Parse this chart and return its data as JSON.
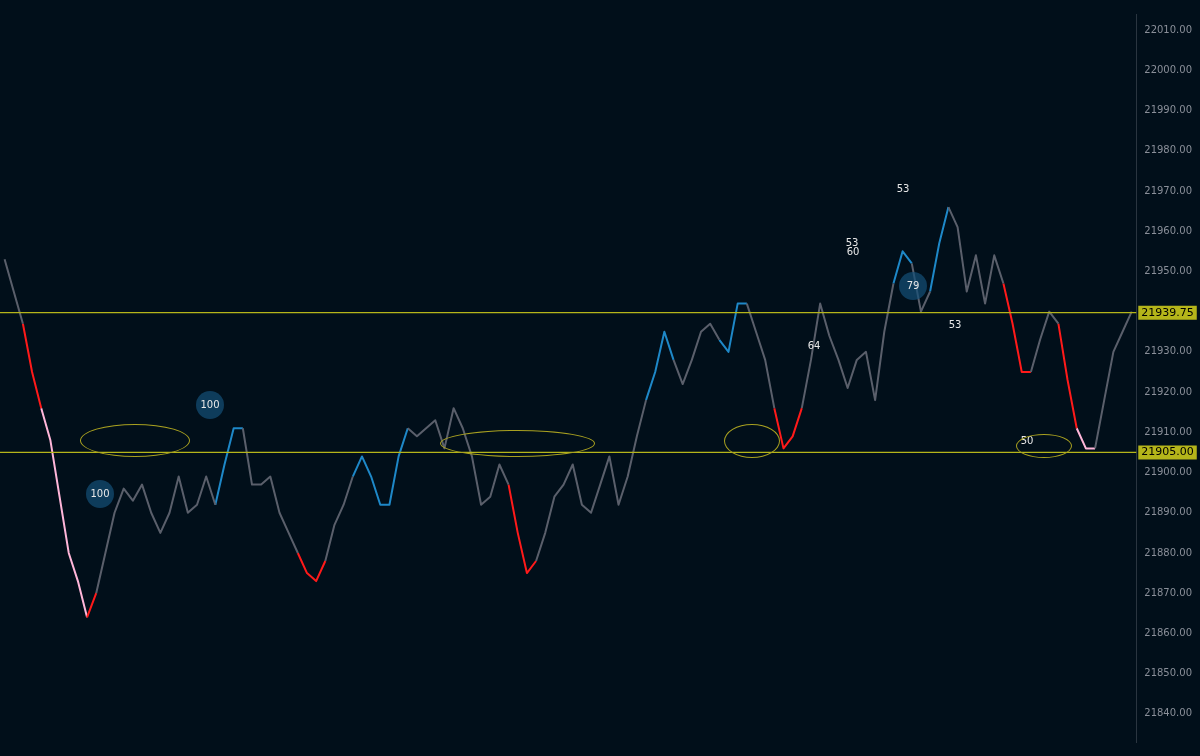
{
  "chart_data": {
    "type": "line",
    "categories": [
      null,
      null,
      null,
      null,
      null,
      null,
      null,
      null,
      null,
      null,
      null,
      null,
      null,
      null,
      null,
      null,
      null,
      null,
      null,
      null,
      null,
      null,
      null,
      null,
      null,
      null,
      null,
      null,
      null,
      null,
      null,
      null,
      null,
      null,
      null,
      null,
      null,
      null,
      null,
      null,
      null,
      null,
      null,
      null,
      null,
      null,
      null,
      null,
      null,
      null,
      null,
      null,
      null,
      null,
      null,
      null,
      null,
      null,
      null,
      null,
      null,
      null,
      null,
      null,
      null,
      null,
      null,
      null,
      null,
      null,
      null,
      null,
      null,
      null,
      null,
      null,
      null,
      null,
      null,
      null,
      null,
      null,
      null,
      null,
      null,
      null,
      null,
      null,
      null,
      null,
      null,
      null,
      null,
      null,
      null,
      null,
      null,
      null,
      null,
      null,
      null,
      null,
      null,
      null,
      null,
      null,
      null,
      null,
      null,
      null,
      null,
      null,
      null,
      null,
      null,
      null,
      null,
      null,
      null,
      null,
      null,
      null,
      null,
      null
    ],
    "series": [
      {
        "color": "#5a5f6b",
        "values": [
          21953,
          21945,
          21937,
          null,
          null,
          null,
          null,
          null,
          null,
          null,
          21870,
          21880,
          21890,
          21896,
          21893,
          21897,
          21890,
          21885,
          21890,
          21899,
          21890,
          21892,
          21899,
          21892,
          null,
          null,
          21911,
          21897,
          21897,
          21899,
          21890,
          21885,
          21880,
          null,
          null,
          21878,
          21887,
          21892,
          21899,
          null,
          null,
          null,
          null,
          null,
          21911,
          21909,
          21911,
          21913,
          21906,
          21916,
          21911,
          21904,
          21892,
          21894,
          21902,
          21897,
          null,
          null,
          21878,
          21885,
          21894,
          21897,
          21902,
          21892,
          21890,
          21897,
          21904,
          21892,
          21899,
          21909,
          21918,
          null,
          null,
          21928,
          21922,
          21928,
          21935,
          21937,
          21933,
          null,
          null,
          21942,
          21935,
          21928,
          21916,
          null,
          null,
          21916,
          21928,
          21942,
          21934,
          21928,
          21921,
          21928,
          21930,
          21918,
          21935,
          21947,
          null,
          21952,
          21940,
          21945,
          null,
          21966,
          21961,
          21945,
          21954,
          21942,
          21954,
          21947,
          null,
          null,
          21925,
          21933,
          21940,
          21937,
          null,
          null,
          null,
          21906,
          21918,
          21930,
          21935,
          21940
        ]
      },
      {
        "color": "#ff1a1a",
        "values": [
          null,
          null,
          21937,
          21925,
          21916,
          null,
          null,
          null,
          null,
          21864,
          21870,
          null,
          null,
          null,
          null,
          null,
          null,
          null,
          null,
          null,
          null,
          null,
          null,
          null,
          null,
          null,
          null,
          null,
          null,
          null,
          null,
          null,
          21880,
          21875,
          21873,
          21878,
          null,
          null,
          null,
          null,
          null,
          null,
          null,
          null,
          null,
          null,
          null,
          null,
          null,
          null,
          null,
          null,
          null,
          null,
          null,
          21897,
          21885,
          21875,
          21878,
          null,
          null,
          null,
          null,
          null,
          null,
          null,
          null,
          null,
          null,
          null,
          null,
          null,
          null,
          null,
          null,
          null,
          null,
          null,
          null,
          null,
          null,
          null,
          null,
          null,
          21916,
          21906,
          21909,
          21916,
          null,
          null,
          null,
          null,
          null,
          null,
          null,
          null,
          null,
          null,
          null,
          null,
          null,
          null,
          null,
          null,
          null,
          null,
          null,
          null,
          null,
          21947,
          21937,
          21925,
          21925,
          null,
          null,
          21937,
          21923,
          21911,
          null,
          null,
          null,
          null,
          null,
          null
        ]
      },
      {
        "color": "#ffb6d9",
        "values": [
          null,
          null,
          null,
          null,
          21916,
          21908,
          21894,
          21880,
          21873,
          21864,
          null,
          null,
          null,
          null,
          null,
          null,
          null,
          null,
          null,
          null,
          null,
          null,
          null,
          null,
          null,
          null,
          null,
          null,
          null,
          null,
          null,
          null,
          null,
          null,
          null,
          null,
          null,
          null,
          null,
          null,
          null,
          null,
          null,
          null,
          null,
          null,
          null,
          null,
          null,
          null,
          null,
          null,
          null,
          null,
          null,
          null,
          null,
          null,
          null,
          null,
          null,
          null,
          null,
          null,
          null,
          null,
          null,
          null,
          null,
          null,
          null,
          null,
          null,
          null,
          null,
          null,
          null,
          null,
          null,
          null,
          null,
          null,
          null,
          null,
          null,
          null,
          null,
          null,
          null,
          null,
          null,
          null,
          null,
          null,
          null,
          null,
          null,
          null,
          null,
          null,
          null,
          null,
          null,
          null,
          null,
          null,
          null,
          null,
          null,
          null,
          null,
          null,
          null,
          null,
          null,
          null,
          null,
          21911,
          21906,
          21906,
          null,
          null,
          null,
          null
        ]
      },
      {
        "color": "#1e88c8",
        "values": [
          null,
          null,
          null,
          null,
          null,
          null,
          null,
          null,
          null,
          null,
          null,
          null,
          null,
          null,
          null,
          null,
          null,
          null,
          null,
          null,
          null,
          null,
          null,
          21892,
          21902,
          21911,
          21911,
          null,
          null,
          null,
          null,
          null,
          null,
          null,
          null,
          null,
          null,
          null,
          21899,
          21904,
          21899,
          21892,
          21892,
          21904,
          21911,
          null,
          null,
          null,
          null,
          null,
          null,
          null,
          null,
          null,
          null,
          null,
          null,
          null,
          null,
          null,
          null,
          null,
          null,
          null,
          null,
          null,
          null,
          null,
          null,
          null,
          21918,
          21925,
          21935,
          21928,
          null,
          null,
          null,
          null,
          21933,
          21930,
          21942,
          21942,
          null,
          null,
          null,
          null,
          null,
          null,
          null,
          null,
          null,
          null,
          null,
          null,
          null,
          null,
          null,
          21947,
          21955,
          21952,
          null,
          21945,
          21957,
          21966,
          null,
          null,
          null,
          null,
          null,
          null,
          null,
          null,
          null,
          null,
          null,
          null,
          null,
          null,
          null,
          null,
          null,
          null,
          null,
          null
        ]
      }
    ],
    "ylim": [
      21833,
      22014
    ],
    "yticks": [
      {
        "value": 21840,
        "label": "21840.00"
      },
      {
        "value": 21850,
        "label": "21850.00"
      },
      {
        "value": 21860,
        "label": "21860.00"
      },
      {
        "value": 21870,
        "label": "21870.00"
      },
      {
        "value": 21880,
        "label": "21880.00"
      },
      {
        "value": 21890,
        "label": "21890.00"
      },
      {
        "value": 21900,
        "label": "21900.00"
      },
      {
        "value": 21910,
        "label": "21910.00"
      },
      {
        "value": 21920,
        "label": "21920.00"
      },
      {
        "value": 21930,
        "label": "21930.00"
      },
      {
        "value": 21940,
        "label": null
      },
      {
        "value": 21950,
        "label": "21950.00"
      },
      {
        "value": 21960,
        "label": "21960.00"
      },
      {
        "value": 21970,
        "label": "21970.00"
      },
      {
        "value": 21980,
        "label": "21980.00"
      },
      {
        "value": 21990,
        "label": "21990.00"
      },
      {
        "value": 22000,
        "label": "22000.00"
      },
      {
        "value": 22010,
        "label": "22010.00"
      }
    ],
    "ref_lines": [
      {
        "axis": "y",
        "value": 21905,
        "label": "21905.00",
        "color": "#b5b51a"
      },
      {
        "axis": "y",
        "value": 21939.75,
        "label": "21939.75",
        "color": "#b5b51a"
      }
    ],
    "annotations": [
      "100",
      "100",
      "64",
      "53",
      "60",
      "53",
      "79",
      "53",
      "50"
    ],
    "marker": "none",
    "line_style": "solid",
    "tick_labels": "y",
    "grid": false,
    "legend": false
  }
}
